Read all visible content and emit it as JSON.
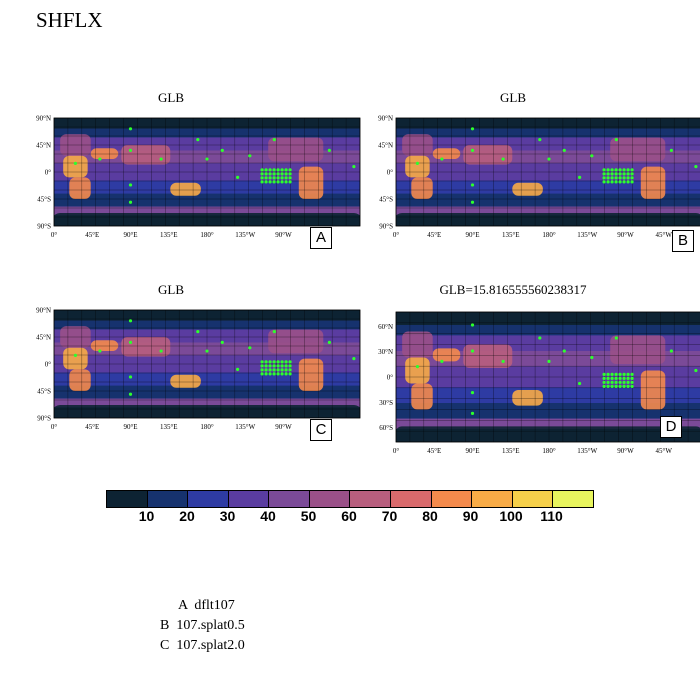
{
  "title": "SHFLX",
  "panels": [
    {
      "title": "GLB",
      "letter": "A"
    },
    {
      "title": "GLB",
      "letter": "B"
    },
    {
      "title": "GLB",
      "letter": "C"
    },
    {
      "title": "GLB=15.816555560238317",
      "letter": "D"
    }
  ],
  "lat_labels_global": [
    "90°N",
    "45°N",
    "0°",
    "45°S",
    "90°S"
  ],
  "lat_labels_d": [
    "60°N",
    "30°N",
    "0°",
    "30°S",
    "60°S"
  ],
  "lon_labels": [
    "0°",
    "45°E",
    "90°E",
    "135°E",
    "180°",
    "135°W",
    "90°W",
    "45°W"
  ],
  "colorbar": {
    "labels": [
      "10",
      "20",
      "30",
      "40",
      "50",
      "60",
      "70",
      "80",
      "90",
      "100",
      "110"
    ],
    "colors": [
      "#0d2333",
      "#16326e",
      "#2e3ba3",
      "#5a3ca0",
      "#7b4a98",
      "#9a5088",
      "#b85e7e",
      "#d96a6c",
      "#f48a4c",
      "#f8ab46",
      "#f6d04a",
      "#e8f55e"
    ]
  },
  "legend": [
    "A  dflt107",
    "B  107.splat0.5",
    "C  107.splat2.0"
  ]
}
